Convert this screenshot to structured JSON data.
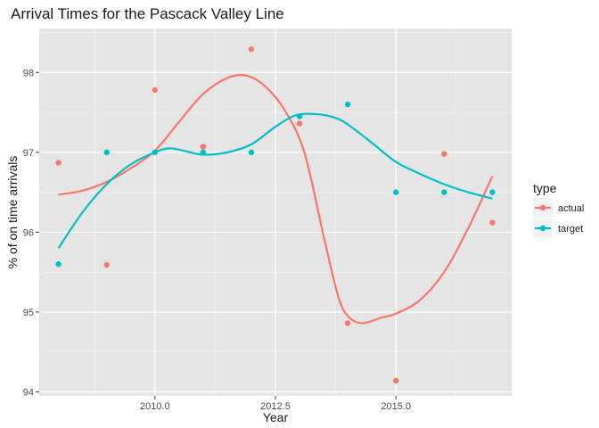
{
  "chart_data": {
    "type": "scatter",
    "title": "Arrival Times for the Pascack Valley Line",
    "xlabel": "Year",
    "ylabel": "% of on time arrivals",
    "xlim": [
      2007.6,
      2017.4
    ],
    "ylim": [
      93.95,
      98.55
    ],
    "x_ticks": [
      2010.0,
      2012.5,
      2015.0
    ],
    "x_tick_labels": [
      "2010.0",
      "2012.5",
      "2015.0"
    ],
    "y_ticks": [
      94,
      95,
      96,
      97,
      98
    ],
    "y_tick_labels": [
      "94",
      "95",
      "96",
      "97",
      "98"
    ],
    "grid": true,
    "background": "#e5e5e5",
    "legend": {
      "title": "type",
      "position": "right",
      "entries": [
        "actual",
        "target"
      ]
    },
    "series": [
      {
        "name": "actual",
        "color": "#f8766d",
        "points": [
          {
            "x": 2008,
            "y": 96.87
          },
          {
            "x": 2009,
            "y": 95.59
          },
          {
            "x": 2010,
            "y": 97.78
          },
          {
            "x": 2011,
            "y": 97.07
          },
          {
            "x": 2012,
            "y": 98.29
          },
          {
            "x": 2013,
            "y": 97.36
          },
          {
            "x": 2014,
            "y": 94.86
          },
          {
            "x": 2015,
            "y": 94.14
          },
          {
            "x": 2016,
            "y": 96.98
          },
          {
            "x": 2017,
            "y": 96.12
          }
        ],
        "smooth": [
          {
            "x": 2008,
            "y": 96.47
          },
          {
            "x": 2008.5,
            "y": 96.52
          },
          {
            "x": 2009,
            "y": 96.63
          },
          {
            "x": 2009.5,
            "y": 96.8
          },
          {
            "x": 2010,
            "y": 97.02
          },
          {
            "x": 2010.5,
            "y": 97.38
          },
          {
            "x": 2011,
            "y": 97.73
          },
          {
            "x": 2011.5,
            "y": 97.93
          },
          {
            "x": 2011.9,
            "y": 97.96
          },
          {
            "x": 2012.3,
            "y": 97.82
          },
          {
            "x": 2012.7,
            "y": 97.52
          },
          {
            "x": 2013.1,
            "y": 97.0
          },
          {
            "x": 2013.5,
            "y": 95.95
          },
          {
            "x": 2013.8,
            "y": 95.2
          },
          {
            "x": 2014.0,
            "y": 94.95
          },
          {
            "x": 2014.3,
            "y": 94.86
          },
          {
            "x": 2014.7,
            "y": 94.93
          },
          {
            "x": 2015,
            "y": 94.98
          },
          {
            "x": 2015.5,
            "y": 95.15
          },
          {
            "x": 2016,
            "y": 95.5
          },
          {
            "x": 2016.5,
            "y": 96.05
          },
          {
            "x": 2017,
            "y": 96.7
          }
        ]
      },
      {
        "name": "target",
        "color": "#00bfc4",
        "points": [
          {
            "x": 2008,
            "y": 95.6
          },
          {
            "x": 2009,
            "y": 97.0
          },
          {
            "x": 2010,
            "y": 97.0
          },
          {
            "x": 2011,
            "y": 97.0
          },
          {
            "x": 2012,
            "y": 97.0
          },
          {
            "x": 2013,
            "y": 97.45
          },
          {
            "x": 2014,
            "y": 97.6
          },
          {
            "x": 2015,
            "y": 96.5
          },
          {
            "x": 2016,
            "y": 96.5
          },
          {
            "x": 2017,
            "y": 96.5
          }
        ],
        "smooth": [
          {
            "x": 2008,
            "y": 95.8
          },
          {
            "x": 2008.5,
            "y": 96.25
          },
          {
            "x": 2009,
            "y": 96.6
          },
          {
            "x": 2009.5,
            "y": 96.85
          },
          {
            "x": 2010,
            "y": 97.0
          },
          {
            "x": 2010.3,
            "y": 97.05
          },
          {
            "x": 2010.6,
            "y": 97.02
          },
          {
            "x": 2011,
            "y": 96.97
          },
          {
            "x": 2011.5,
            "y": 97.0
          },
          {
            "x": 2012,
            "y": 97.1
          },
          {
            "x": 2012.5,
            "y": 97.32
          },
          {
            "x": 2012.9,
            "y": 97.46
          },
          {
            "x": 2013.3,
            "y": 97.48
          },
          {
            "x": 2013.7,
            "y": 97.44
          },
          {
            "x": 2014,
            "y": 97.35
          },
          {
            "x": 2014.5,
            "y": 97.12
          },
          {
            "x": 2015,
            "y": 96.88
          },
          {
            "x": 2015.5,
            "y": 96.73
          },
          {
            "x": 2016,
            "y": 96.6
          },
          {
            "x": 2016.5,
            "y": 96.5
          },
          {
            "x": 2017,
            "y": 96.42
          }
        ]
      }
    ]
  }
}
